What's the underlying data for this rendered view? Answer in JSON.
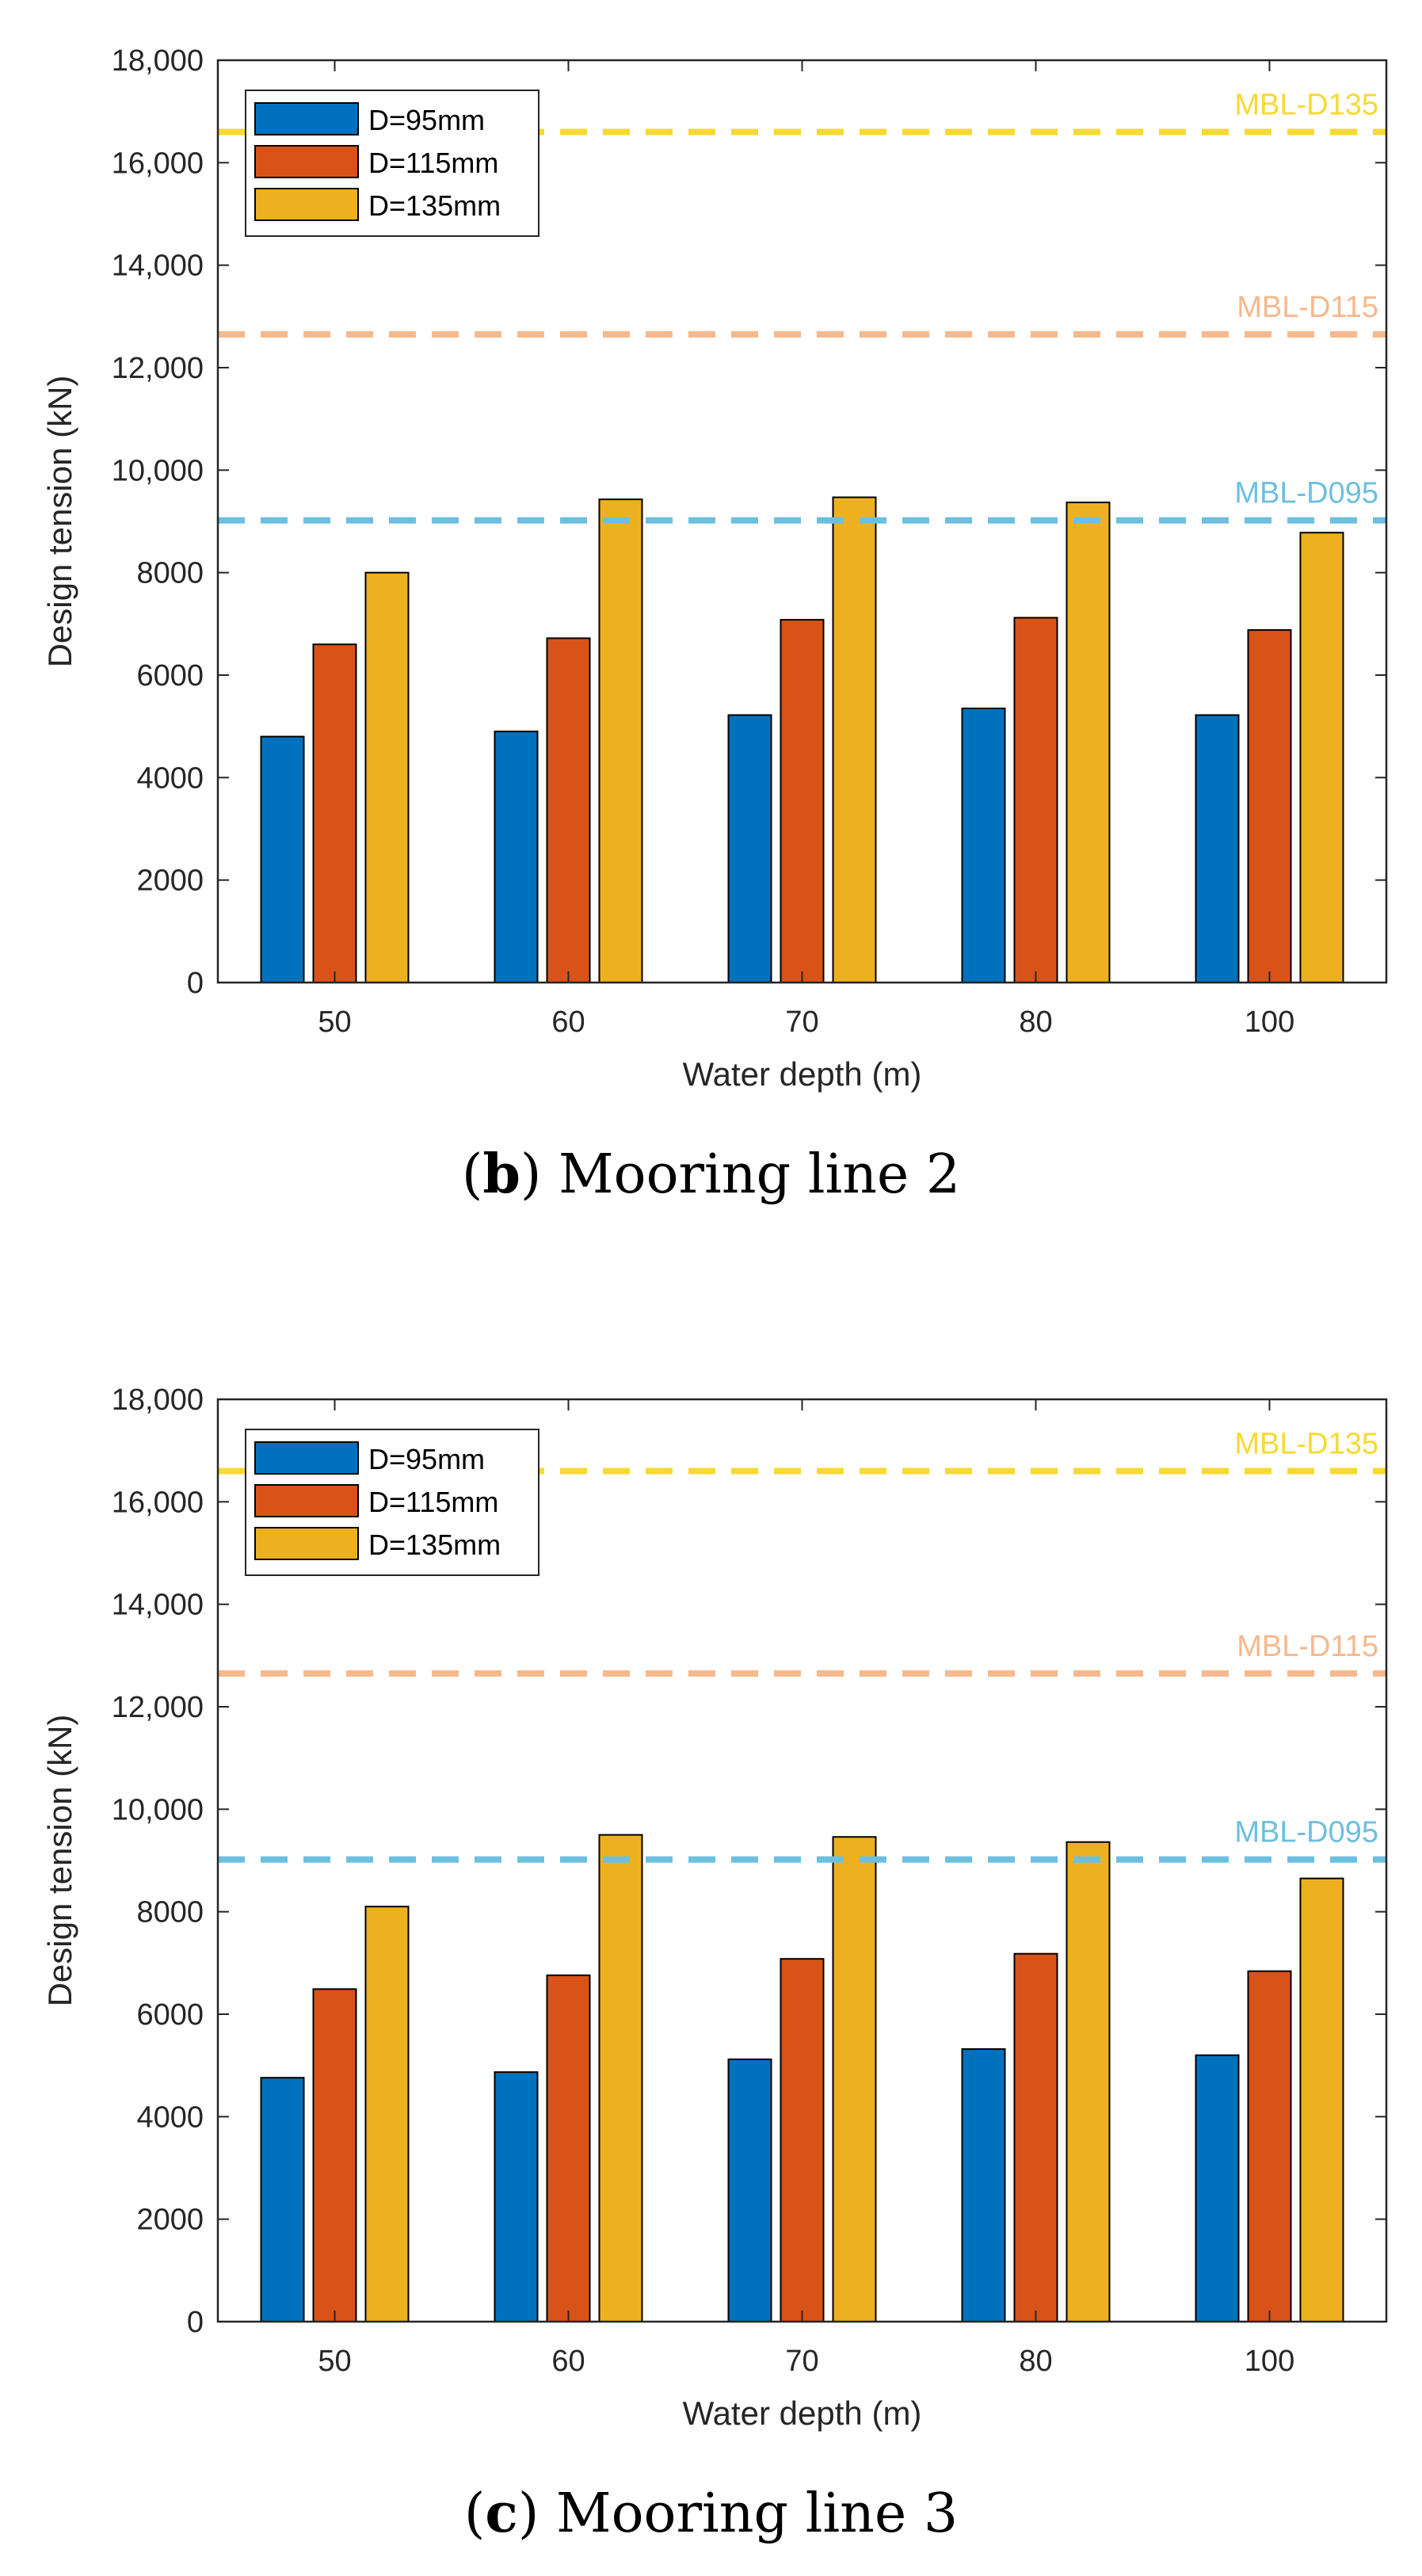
{
  "chart_data": [
    {
      "type": "bar",
      "caption_letter": "b",
      "caption_text": "Mooring line 2",
      "xlabel": "Water depth (m)",
      "ylabel": "Design tension (kN)",
      "ylim": [
        0,
        18000
      ],
      "yticks": [
        "0",
        "2000",
        "4000",
        "6000",
        "8000",
        "10,000",
        "12,000",
        "14,000",
        "16,000",
        "18,000"
      ],
      "categories": [
        "50",
        "60",
        "70",
        "80",
        "100"
      ],
      "series": [
        {
          "name": "D=95mm",
          "color": "#0072BD",
          "values": [
            4800,
            4900,
            5220,
            5350,
            5220
          ]
        },
        {
          "name": "D=115mm",
          "color": "#D95319",
          "values": [
            6600,
            6720,
            7080,
            7120,
            6880
          ]
        },
        {
          "name": "D=135mm",
          "color": "#EDB120",
          "values": [
            8000,
            9430,
            9470,
            9370,
            8780
          ]
        }
      ],
      "reference_lines": [
        {
          "label": "MBL-D135",
          "value": 16600,
          "color": "#F7D934"
        },
        {
          "label": "MBL-D115",
          "value": 12650,
          "color": "#F5B98D"
        },
        {
          "label": "MBL-D095",
          "value": 9020,
          "color": "#6DBFDF"
        }
      ],
      "legend_position": "top-left"
    },
    {
      "type": "bar",
      "caption_letter": "c",
      "caption_text": "Mooring line 3",
      "xlabel": "Water depth (m)",
      "ylabel": "Design tension (kN)",
      "ylim": [
        0,
        18000
      ],
      "yticks": [
        "0",
        "2000",
        "4000",
        "6000",
        "8000",
        "10,000",
        "12,000",
        "14,000",
        "16,000",
        "18,000"
      ],
      "categories": [
        "50",
        "60",
        "70",
        "80",
        "100"
      ],
      "series": [
        {
          "name": "D=95mm",
          "color": "#0072BD",
          "values": [
            4760,
            4870,
            5120,
            5320,
            5200
          ]
        },
        {
          "name": "D=115mm",
          "color": "#D95319",
          "values": [
            6490,
            6760,
            7080,
            7180,
            6840
          ]
        },
        {
          "name": "D=135mm",
          "color": "#EDB120",
          "values": [
            8100,
            9500,
            9460,
            9360,
            8650
          ]
        }
      ],
      "reference_lines": [
        {
          "label": "MBL-D135",
          "value": 16600,
          "color": "#F7D934"
        },
        {
          "label": "MBL-D115",
          "value": 12650,
          "color": "#F5B98D"
        },
        {
          "label": "MBL-D095",
          "value": 9020,
          "color": "#6DBFDF"
        }
      ],
      "legend_position": "top-left"
    }
  ]
}
